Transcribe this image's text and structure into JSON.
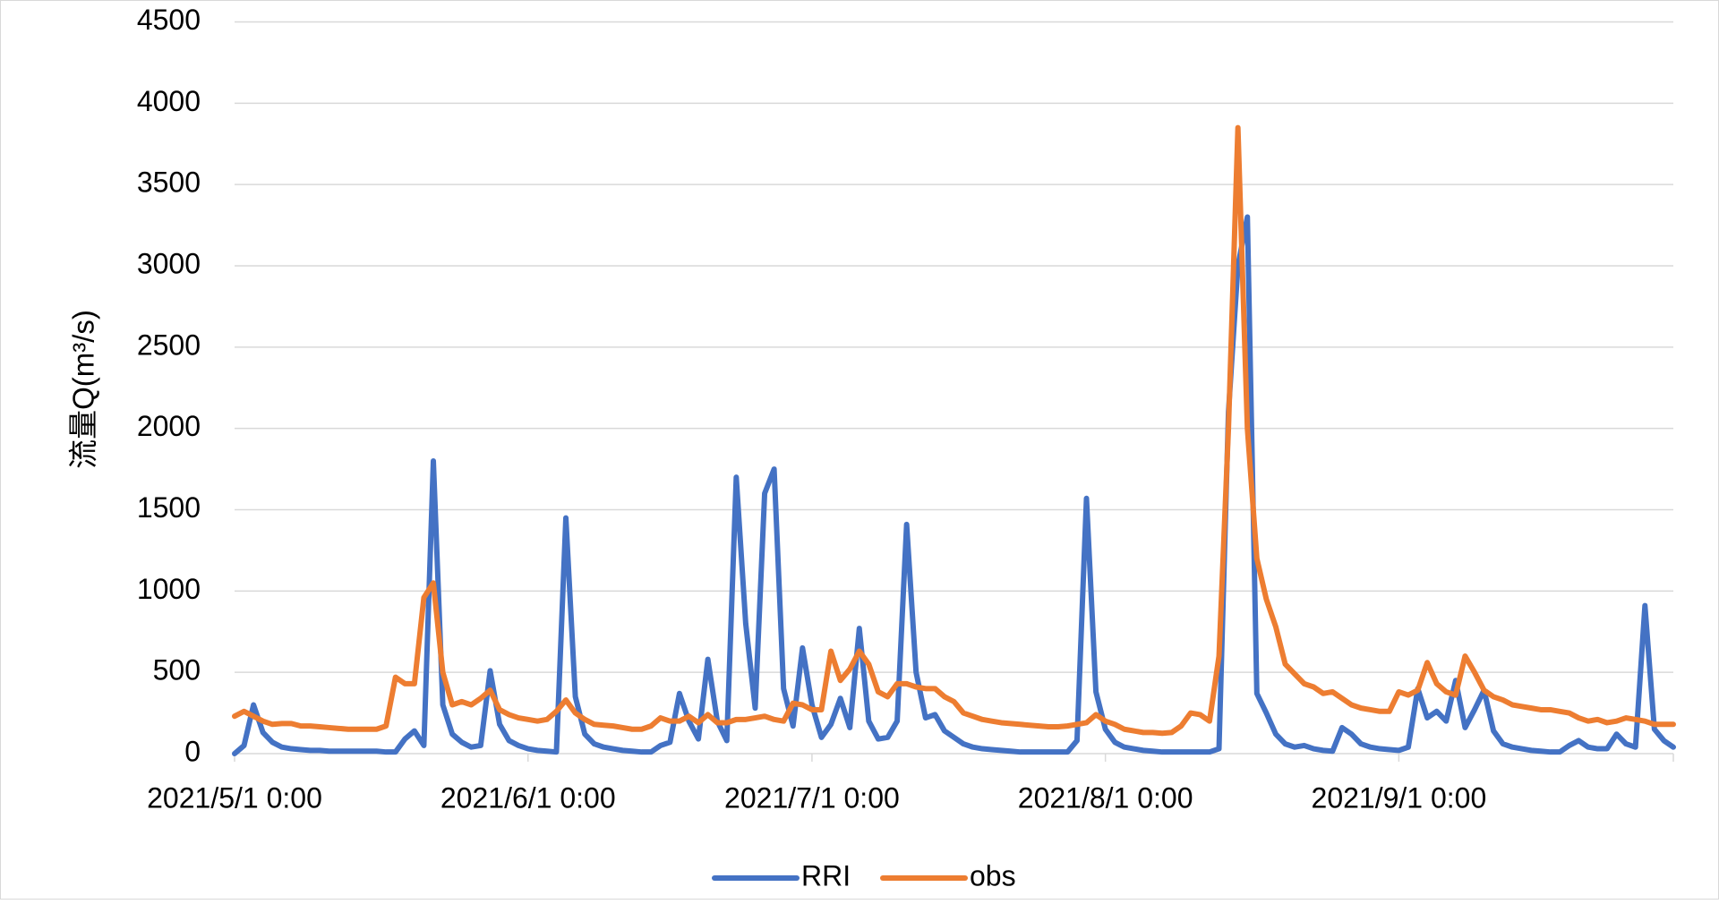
{
  "chart_data": {
    "type": "line",
    "y_label": "流量Q(m³/s)",
    "x": [
      "2021/5/1 0:00",
      "2021/5/2 0:00",
      "2021/5/3 0:00",
      "2021/5/4 0:00",
      "2021/5/5 0:00",
      "2021/5/6 0:00",
      "2021/5/7 0:00",
      "2021/5/8 0:00",
      "2021/5/9 0:00",
      "2021/5/10 0:00",
      "2021/5/11 0:00",
      "2021/5/12 0:00",
      "2021/5/13 0:00",
      "2021/5/14 0:00",
      "2021/5/15 0:00",
      "2021/5/16 0:00",
      "2021/5/17 0:00",
      "2021/5/18 0:00",
      "2021/5/19 0:00",
      "2021/5/20 0:00",
      "2021/5/21 0:00",
      "2021/5/22 0:00",
      "2021/5/23 0:00",
      "2021/5/24 0:00",
      "2021/5/25 0:00",
      "2021/5/26 0:00",
      "2021/5/27 0:00",
      "2021/5/28 0:00",
      "2021/5/29 0:00",
      "2021/5/30 0:00",
      "2021/5/31 0:00",
      "2021/6/1 0:00",
      "2021/6/2 0:00",
      "2021/6/3 0:00",
      "2021/6/4 0:00",
      "2021/6/5 0:00",
      "2021/6/6 0:00",
      "2021/6/7 0:00",
      "2021/6/8 0:00",
      "2021/6/9 0:00",
      "2021/6/10 0:00",
      "2021/6/11 0:00",
      "2021/6/12 0:00",
      "2021/6/13 0:00",
      "2021/6/14 0:00",
      "2021/6/15 0:00",
      "2021/6/16 0:00",
      "2021/6/17 0:00",
      "2021/6/18 0:00",
      "2021/6/19 0:00",
      "2021/6/20 0:00",
      "2021/6/21 0:00",
      "2021/6/22 0:00",
      "2021/6/23 0:00",
      "2021/6/24 0:00",
      "2021/6/25 0:00",
      "2021/6/26 0:00",
      "2021/6/27 0:00",
      "2021/6/28 0:00",
      "2021/6/29 0:00",
      "2021/6/30 0:00",
      "2021/7/1 0:00",
      "2021/7/2 0:00",
      "2021/7/3 0:00",
      "2021/7/4 0:00",
      "2021/7/5 0:00",
      "2021/7/6 0:00",
      "2021/7/7 0:00",
      "2021/7/8 0:00",
      "2021/7/9 0:00",
      "2021/7/10 0:00",
      "2021/7/11 0:00",
      "2021/7/12 0:00",
      "2021/7/13 0:00",
      "2021/7/14 0:00",
      "2021/7/15 0:00",
      "2021/7/16 0:00",
      "2021/7/17 0:00",
      "2021/7/18 0:00",
      "2021/7/19 0:00",
      "2021/7/20 0:00",
      "2021/7/21 0:00",
      "2021/7/22 0:00",
      "2021/7/23 0:00",
      "2021/7/24 0:00",
      "2021/7/25 0:00",
      "2021/7/26 0:00",
      "2021/7/27 0:00",
      "2021/7/28 0:00",
      "2021/7/29 0:00",
      "2021/7/30 0:00",
      "2021/7/31 0:00",
      "2021/8/1 0:00",
      "2021/8/2 0:00",
      "2021/8/3 0:00",
      "2021/8/4 0:00",
      "2021/8/5 0:00",
      "2021/8/6 0:00",
      "2021/8/7 0:00",
      "2021/8/8 0:00",
      "2021/8/9 0:00",
      "2021/8/10 0:00",
      "2021/8/11 0:00",
      "2021/8/12 0:00",
      "2021/8/13 0:00",
      "2021/8/14 0:00",
      "2021/8/15 0:00",
      "2021/8/16 0:00",
      "2021/8/17 0:00",
      "2021/8/18 0:00",
      "2021/8/19 0:00",
      "2021/8/20 0:00",
      "2021/8/21 0:00",
      "2021/8/22 0:00",
      "2021/8/23 0:00",
      "2021/8/24 0:00",
      "2021/8/25 0:00",
      "2021/8/26 0:00",
      "2021/8/27 0:00",
      "2021/8/28 0:00",
      "2021/8/29 0:00",
      "2021/8/30 0:00",
      "2021/8/31 0:00",
      "2021/9/1 0:00",
      "2021/9/2 0:00",
      "2021/9/3 0:00",
      "2021/9/4 0:00",
      "2021/9/5 0:00",
      "2021/9/6 0:00",
      "2021/9/7 0:00",
      "2021/9/8 0:00",
      "2021/9/9 0:00",
      "2021/9/10 0:00",
      "2021/9/11 0:00",
      "2021/9/12 0:00",
      "2021/9/13 0:00",
      "2021/9/14 0:00",
      "2021/9/15 0:00",
      "2021/9/16 0:00",
      "2021/9/17 0:00",
      "2021/9/18 0:00",
      "2021/9/19 0:00",
      "2021/9/20 0:00",
      "2021/9/21 0:00",
      "2021/9/22 0:00",
      "2021/9/23 0:00",
      "2021/9/24 0:00",
      "2021/9/25 0:00",
      "2021/9/26 0:00",
      "2021/9/27 0:00",
      "2021/9/28 0:00",
      "2021/9/29 0:00",
      "2021/9/30 0:00"
    ],
    "series": [
      {
        "name": "RRI",
        "color": "#4472c4",
        "values": [
          0,
          50,
          300,
          130,
          70,
          40,
          30,
          25,
          20,
          20,
          15,
          15,
          15,
          15,
          15,
          15,
          10,
          10,
          90,
          140,
          50,
          1800,
          300,
          120,
          70,
          40,
          50,
          510,
          180,
          80,
          50,
          30,
          20,
          15,
          10,
          1450,
          350,
          120,
          60,
          40,
          30,
          20,
          15,
          10,
          10,
          50,
          70,
          370,
          200,
          90,
          580,
          200,
          80,
          1700,
          800,
          280,
          1600,
          1750,
          400,
          170,
          650,
          300,
          100,
          180,
          340,
          160,
          770,
          200,
          90,
          100,
          200,
          1410,
          500,
          220,
          240,
          140,
          100,
          60,
          40,
          30,
          25,
          20,
          15,
          10,
          10,
          10,
          10,
          10,
          10,
          80,
          1570,
          380,
          150,
          70,
          40,
          30,
          20,
          15,
          10,
          10,
          10,
          10,
          10,
          10,
          30,
          2100,
          3000,
          3300,
          370,
          250,
          120,
          60,
          40,
          50,
          30,
          20,
          15,
          160,
          120,
          60,
          40,
          30,
          25,
          20,
          40,
          400,
          220,
          260,
          200,
          450,
          160,
          270,
          390,
          140,
          60,
          40,
          30,
          20,
          15,
          10,
          10,
          50,
          80,
          40,
          30,
          30,
          120,
          60,
          40,
          910,
          150,
          80,
          40
        ]
      },
      {
        "name": "obs",
        "color": "#ed7d31",
        "values": [
          230,
          260,
          230,
          200,
          180,
          185,
          185,
          170,
          170,
          165,
          160,
          155,
          150,
          150,
          150,
          150,
          170,
          470,
          430,
          430,
          960,
          1050,
          500,
          300,
          320,
          300,
          340,
          390,
          270,
          240,
          220,
          210,
          200,
          210,
          260,
          330,
          250,
          210,
          180,
          175,
          170,
          160,
          150,
          150,
          170,
          220,
          200,
          200,
          230,
          190,
          240,
          190,
          190,
          210,
          210,
          220,
          230,
          210,
          200,
          310,
          300,
          270,
          270,
          630,
          450,
          520,
          630,
          550,
          380,
          350,
          430,
          430,
          410,
          400,
          400,
          350,
          320,
          250,
          230,
          210,
          200,
          190,
          185,
          180,
          175,
          170,
          165,
          165,
          170,
          180,
          190,
          240,
          200,
          180,
          150,
          140,
          130,
          130,
          125,
          130,
          170,
          250,
          240,
          200,
          600,
          2000,
          3850,
          2000,
          1200,
          950,
          780,
          550,
          490,
          430,
          410,
          370,
          380,
          340,
          300,
          280,
          270,
          260,
          260,
          380,
          360,
          390,
          560,
          430,
          380,
          360,
          600,
          500,
          390,
          350,
          330,
          300,
          290,
          280,
          270,
          270,
          260,
          250,
          220,
          200,
          210,
          190,
          200,
          220,
          210,
          200,
          180,
          180,
          180
        ]
      }
    ],
    "xlim": [
      "2021/5/1 0:00",
      "2021/9/30 0:00"
    ],
    "xticks": [
      "2021/5/1 0:00",
      "2021/6/1 0:00",
      "2021/7/1 0:00",
      "2021/8/1 0:00",
      "2021/9/1 0:00"
    ],
    "ylim": [
      0,
      4500
    ],
    "yticks": [
      0,
      500,
      1000,
      1500,
      2000,
      2500,
      3000,
      3500,
      4000,
      4500
    ],
    "grid": true,
    "legend": "bottom"
  }
}
